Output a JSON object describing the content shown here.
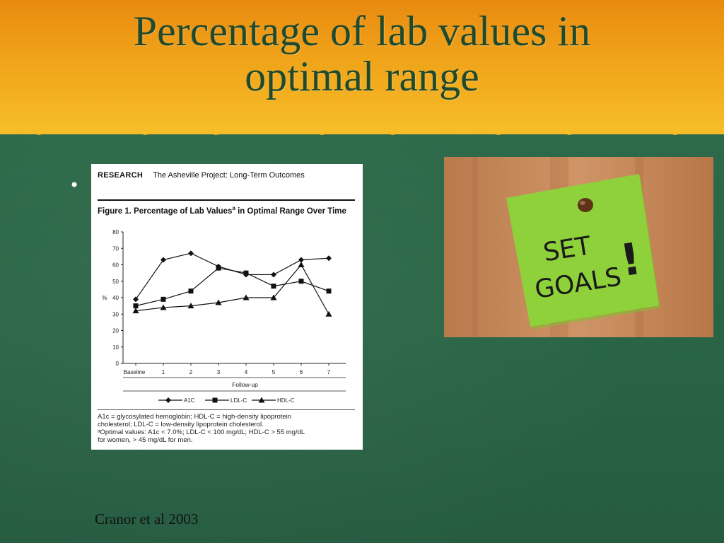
{
  "slide": {
    "title_line1": "Percentage of lab values in",
    "title_line2": "optimal range",
    "bullet": "•",
    "source": "Cranor et al 2003",
    "colors": {
      "title_band": "#f0a41a",
      "background": "#2f6b4a",
      "title_text": "#1f4a2e"
    }
  },
  "figure": {
    "section": "RESEARCH",
    "journal_title": "The Asheville Project: Long-Term Outcomes",
    "title": "Figure 1. Percentage of Lab Values",
    "title_sup": "a",
    "title_rest": " in Optimal Range Over Time",
    "footnote_line1": "A1c = glycosylated hemoglobin; HDL-C = high-density lipoprotein",
    "footnote_line2": "cholesterol; LDL-C = low-density lipoprotein cholesterol.",
    "footnote_line3": "ᵃOptimal values: A1c < 7.0%; LDL-C < 100 mg/dL; HDL-C > 55 mg/dL",
    "footnote_line4": "for women, > 45 mg/dL for men."
  },
  "chart_data": {
    "type": "line",
    "title": "Figure 1. Percentage of Lab Values in Optimal Range Over Time",
    "xlabel": "Follow-up",
    "ylabel": "%",
    "categories": [
      "Baseline",
      "1",
      "2",
      "3",
      "4",
      "5",
      "6",
      "7"
    ],
    "ylim": [
      0,
      80
    ],
    "yticks": [
      0,
      10,
      20,
      30,
      40,
      50,
      60,
      70,
      80
    ],
    "grid": false,
    "legend_position": "bottom",
    "series": [
      {
        "name": "A1C",
        "marker": "diamond",
        "values": [
          39,
          63,
          67,
          59,
          54,
          54,
          63,
          64
        ]
      },
      {
        "name": "LDL-C",
        "marker": "square",
        "values": [
          35,
          39,
          44,
          58,
          55,
          47,
          50,
          44
        ]
      },
      {
        "name": "HDL-C",
        "marker": "triangle",
        "values": [
          32,
          34,
          35,
          37,
          40,
          40,
          60,
          30
        ]
      }
    ]
  },
  "photo": {
    "note_line1": "SET",
    "note_line2": "GOALS",
    "note_mark": "!",
    "colors": {
      "wood": "#c98a5a",
      "note": "#8fd13a",
      "pin": "#6b3a1c"
    }
  }
}
